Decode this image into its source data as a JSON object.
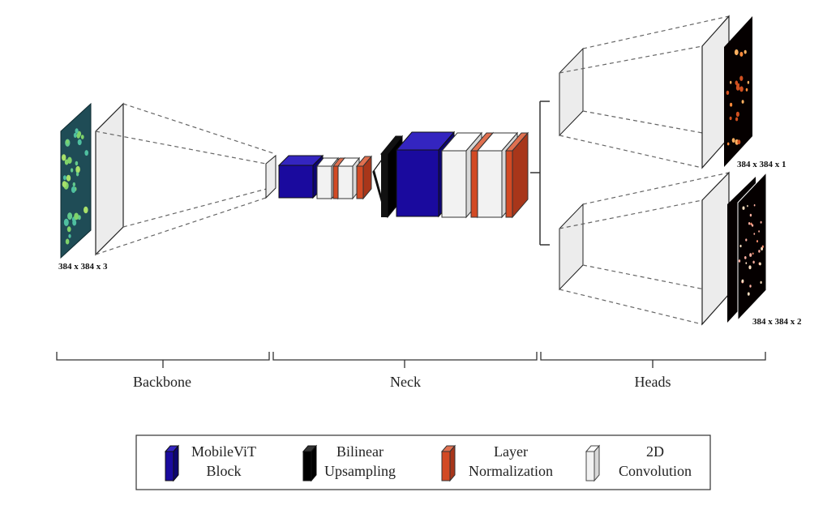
{
  "input_label": "384 x 384 x 3",
  "head1_label": "384 x 384 x 1",
  "head2_label": "384 x 384 x 2",
  "sections": {
    "backbone": "Backbone",
    "neck": "Neck",
    "heads": "Heads"
  },
  "legend": {
    "mobilevit": [
      "MobileViT",
      "Block"
    ],
    "bilinear": [
      "Bilinear",
      "Upsampling"
    ],
    "layernorm": [
      "Layer",
      "Normalization"
    ],
    "conv2d": [
      "2D",
      "Convolution"
    ]
  },
  "colors": {
    "mobilevit_front": "#1a0a9e",
    "mobilevit_side": "#0d0570",
    "mobilevit_top": "#3425c0",
    "bilinear_front": "#000000",
    "layernorm_front": "#d24a24",
    "layernorm_side": "#a8361a",
    "layernorm_top": "#e07050",
    "conv_front": "#f2f2f2",
    "conv_side": "#d8d8d8",
    "conv_top": "#ffffff",
    "input_bg": "#1f4c56",
    "heatmap_bg": "#050000"
  }
}
